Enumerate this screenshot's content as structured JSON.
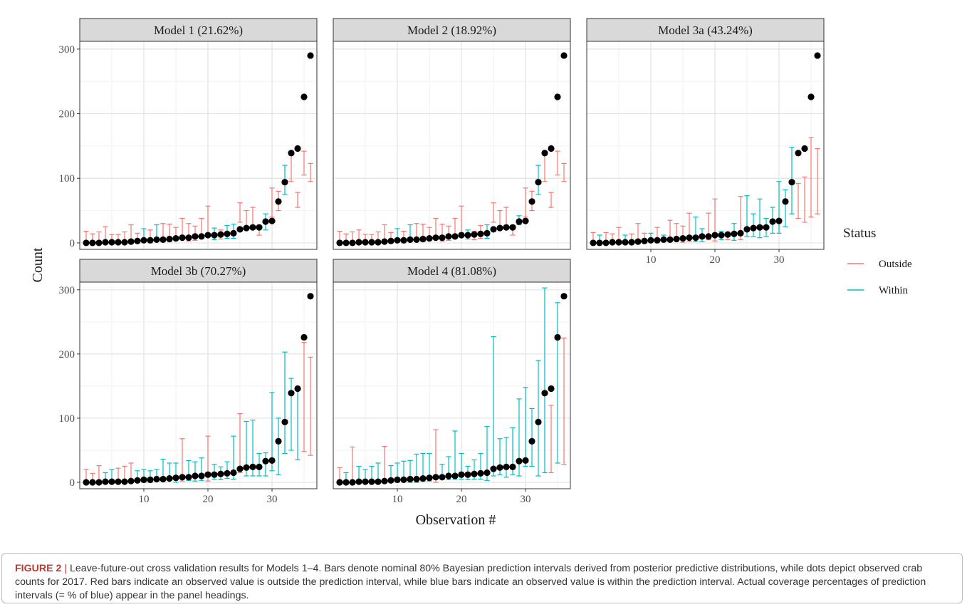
{
  "chart_data": {
    "type": "errorbar-scatter",
    "ylabel": "Count",
    "xlabel": "Observation #",
    "xlim": [
      0,
      37
    ],
    "ylim": [
      -10,
      312
    ],
    "x_ticks": [
      10,
      20,
      30
    ],
    "y_ticks": [
      0,
      100,
      200,
      300
    ],
    "grid": true,
    "facet_layout": "3 columns x 2 rows",
    "legend": {
      "title": "Status",
      "placement": "right",
      "entries": [
        {
          "key": "outside",
          "label": "Outside",
          "color": "#F8766D"
        },
        {
          "key": "within",
          "label": "Within",
          "color": "#00BFC4"
        }
      ]
    },
    "observed": [
      0,
      0,
      0,
      1,
      1,
      1,
      1,
      2,
      3,
      4,
      4,
      5,
      5,
      6,
      7,
      8,
      8,
      10,
      10,
      12,
      12,
      13,
      14,
      15,
      21,
      23,
      24,
      24,
      33,
      34,
      64,
      94,
      139,
      146,
      226,
      290
    ],
    "panels": [
      {
        "title": "Model 1 (21.62%)",
        "intervals": [
          [
            0,
            18
          ],
          [
            0,
            14
          ],
          [
            0,
            17
          ],
          [
            0,
            25
          ],
          [
            0,
            13
          ],
          [
            0,
            13
          ],
          [
            0,
            17
          ],
          [
            5,
            28
          ],
          [
            0,
            15
          ],
          [
            3,
            22
          ],
          [
            0,
            20
          ],
          [
            3,
            28
          ],
          [
            2,
            30
          ],
          [
            2,
            29
          ],
          [
            5,
            24
          ],
          [
            8,
            38
          ],
          [
            3,
            30
          ],
          [
            4,
            26
          ],
          [
            8,
            38
          ],
          [
            14,
            57
          ],
          [
            5,
            23
          ],
          [
            6,
            20
          ],
          [
            7,
            27
          ],
          [
            7,
            29
          ],
          [
            32,
            62
          ],
          [
            25,
            50
          ],
          [
            23,
            55
          ],
          [
            12,
            27
          ],
          [
            20,
            45
          ],
          [
            40,
            85
          ],
          [
            50,
            80
          ],
          [
            75,
            120
          ],
          [
            95,
            138
          ],
          [
            55,
            78
          ],
          [
            105,
            142
          ],
          [
            95,
            123
          ]
        ],
        "status": [
          "o",
          "o",
          "o",
          "o",
          "o",
          "o",
          "o",
          "o",
          "o",
          "w",
          "o",
          "w",
          "o",
          "o",
          "o",
          "o",
          "o",
          "o",
          "o",
          "o",
          "w",
          "o",
          "w",
          "w",
          "o",
          "o",
          "o",
          "o",
          "w",
          "o",
          "o",
          "w",
          "o",
          "o",
          "o",
          "o"
        ]
      },
      {
        "title": "Model 2 (18.92%)",
        "intervals": [
          [
            0,
            18
          ],
          [
            0,
            14
          ],
          [
            0,
            17
          ],
          [
            0,
            20
          ],
          [
            0,
            13
          ],
          [
            0,
            13
          ],
          [
            0,
            17
          ],
          [
            5,
            28
          ],
          [
            0,
            16
          ],
          [
            2,
            22
          ],
          [
            0,
            18
          ],
          [
            3,
            28
          ],
          [
            2,
            30
          ],
          [
            2,
            29
          ],
          [
            5,
            24
          ],
          [
            8,
            38
          ],
          [
            3,
            29
          ],
          [
            4,
            26
          ],
          [
            8,
            38
          ],
          [
            14,
            57
          ],
          [
            6,
            20
          ],
          [
            5,
            18
          ],
          [
            7,
            27
          ],
          [
            7,
            28
          ],
          [
            32,
            62
          ],
          [
            25,
            50
          ],
          [
            23,
            55
          ],
          [
            12,
            27
          ],
          [
            28,
            42
          ],
          [
            40,
            85
          ],
          [
            50,
            80
          ],
          [
            75,
            120
          ],
          [
            95,
            138
          ],
          [
            55,
            78
          ],
          [
            105,
            142
          ],
          [
            95,
            123
          ]
        ],
        "status": [
          "o",
          "o",
          "o",
          "o",
          "o",
          "o",
          "o",
          "o",
          "o",
          "w",
          "o",
          "w",
          "o",
          "o",
          "o",
          "o",
          "o",
          "o",
          "o",
          "o",
          "w",
          "o",
          "o",
          "w",
          "o",
          "o",
          "o",
          "o",
          "w",
          "o",
          "o",
          "w",
          "o",
          "o",
          "o",
          "o"
        ]
      },
      {
        "title": "Model 3a (43.24%)",
        "intervals": [
          [
            0,
            16
          ],
          [
            0,
            12
          ],
          [
            0,
            16
          ],
          [
            0,
            14
          ],
          [
            0,
            24
          ],
          [
            0,
            12
          ],
          [
            0,
            14
          ],
          [
            0,
            30
          ],
          [
            0,
            15
          ],
          [
            2,
            15
          ],
          [
            0,
            24
          ],
          [
            2,
            12
          ],
          [
            3,
            35
          ],
          [
            3,
            30
          ],
          [
            1,
            26
          ],
          [
            2,
            46
          ],
          [
            2,
            40
          ],
          [
            2,
            22
          ],
          [
            5,
            46
          ],
          [
            3,
            68
          ],
          [
            5,
            18
          ],
          [
            5,
            10
          ],
          [
            4,
            30
          ],
          [
            5,
            72
          ],
          [
            10,
            73
          ],
          [
            10,
            45
          ],
          [
            8,
            68
          ],
          [
            10,
            38
          ],
          [
            15,
            55
          ],
          [
            15,
            95
          ],
          [
            25,
            82
          ],
          [
            45,
            148
          ],
          [
            38,
            92
          ],
          [
            32,
            102
          ],
          [
            40,
            163
          ],
          [
            45,
            146
          ]
        ],
        "status": [
          "o",
          "w",
          "o",
          "o",
          "o",
          "w",
          "o",
          "o",
          "o",
          "w",
          "o",
          "w",
          "o",
          "o",
          "o",
          "o",
          "w",
          "w",
          "o",
          "o",
          "w",
          "o",
          "w",
          "o",
          "w",
          "w",
          "w",
          "w",
          "w",
          "w",
          "w",
          "w",
          "o",
          "o",
          "o",
          "o"
        ]
      },
      {
        "title": "Model 3b (70.27%)",
        "intervals": [
          [
            0,
            20
          ],
          [
            0,
            14
          ],
          [
            0,
            26
          ],
          [
            0,
            15
          ],
          [
            0,
            20
          ],
          [
            0,
            22
          ],
          [
            0,
            25
          ],
          [
            0,
            30
          ],
          [
            0,
            18
          ],
          [
            0,
            20
          ],
          [
            0,
            18
          ],
          [
            2,
            20
          ],
          [
            5,
            36
          ],
          [
            3,
            30
          ],
          [
            0,
            30
          ],
          [
            2,
            68
          ],
          [
            3,
            34
          ],
          [
            2,
            32
          ],
          [
            3,
            38
          ],
          [
            2,
            72
          ],
          [
            5,
            28
          ],
          [
            4,
            24
          ],
          [
            6,
            32
          ],
          [
            5,
            72
          ],
          [
            15,
            107
          ],
          [
            10,
            95
          ],
          [
            10,
            97
          ],
          [
            10,
            45
          ],
          [
            10,
            46
          ],
          [
            18,
            140
          ],
          [
            12,
            100
          ],
          [
            45,
            203
          ],
          [
            50,
            162
          ],
          [
            35,
            148
          ],
          [
            48,
            218
          ],
          [
            42,
            195
          ]
        ],
        "status": [
          "o",
          "o",
          "o",
          "w",
          "w",
          "o",
          "o",
          "o",
          "w",
          "w",
          "w",
          "w",
          "w",
          "w",
          "w",
          "o",
          "w",
          "w",
          "w",
          "o",
          "w",
          "w",
          "w",
          "w",
          "o",
          "w",
          "w",
          "w",
          "w",
          "w",
          "w",
          "w",
          "w",
          "w",
          "o",
          "o"
        ]
      },
      {
        "title": "Model 4 (81.08%)",
        "intervals": [
          [
            0,
            23
          ],
          [
            0,
            15
          ],
          [
            0,
            55
          ],
          [
            0,
            25
          ],
          [
            0,
            20
          ],
          [
            0,
            25
          ],
          [
            0,
            30
          ],
          [
            0,
            56
          ],
          [
            0,
            26
          ],
          [
            0,
            30
          ],
          [
            2,
            33
          ],
          [
            0,
            34
          ],
          [
            0,
            44
          ],
          [
            2,
            45
          ],
          [
            2,
            45
          ],
          [
            0,
            82
          ],
          [
            5,
            28
          ],
          [
            4,
            40
          ],
          [
            5,
            80
          ],
          [
            5,
            45
          ],
          [
            4,
            25
          ],
          [
            5,
            35
          ],
          [
            5,
            45
          ],
          [
            3,
            87
          ],
          [
            10,
            227
          ],
          [
            12,
            68
          ],
          [
            8,
            70
          ],
          [
            12,
            85
          ],
          [
            10,
            130
          ],
          [
            25,
            148
          ],
          [
            25,
            115
          ],
          [
            10,
            190
          ],
          [
            15,
            303
          ],
          [
            15,
            120
          ],
          [
            30,
            280
          ],
          [
            28,
            225
          ]
        ],
        "status": [
          "o",
          "w",
          "o",
          "w",
          "w",
          "w",
          "w",
          "o",
          "w",
          "w",
          "w",
          "w",
          "w",
          "w",
          "w",
          "o",
          "w",
          "w",
          "w",
          "w",
          "w",
          "w",
          "w",
          "w",
          "w",
          "w",
          "w",
          "w",
          "w",
          "w",
          "w",
          "w",
          "w",
          "o",
          "w",
          "o"
        ]
      }
    ]
  },
  "caption": {
    "label": "FIGURE 2",
    "separator": "|",
    "text": " Leave-future-out cross validation results for Models 1–4. Bars denote nominal 80% Bayesian prediction intervals derived from posterior predictive distributions, while dots depict observed crab counts for 2017. Red bars indicate an observed value is outside the prediction interval, while blue bars indicate an observed value is within the prediction interval. Actual coverage percentages of prediction intervals (= % of blue) appear in the panel headings."
  }
}
